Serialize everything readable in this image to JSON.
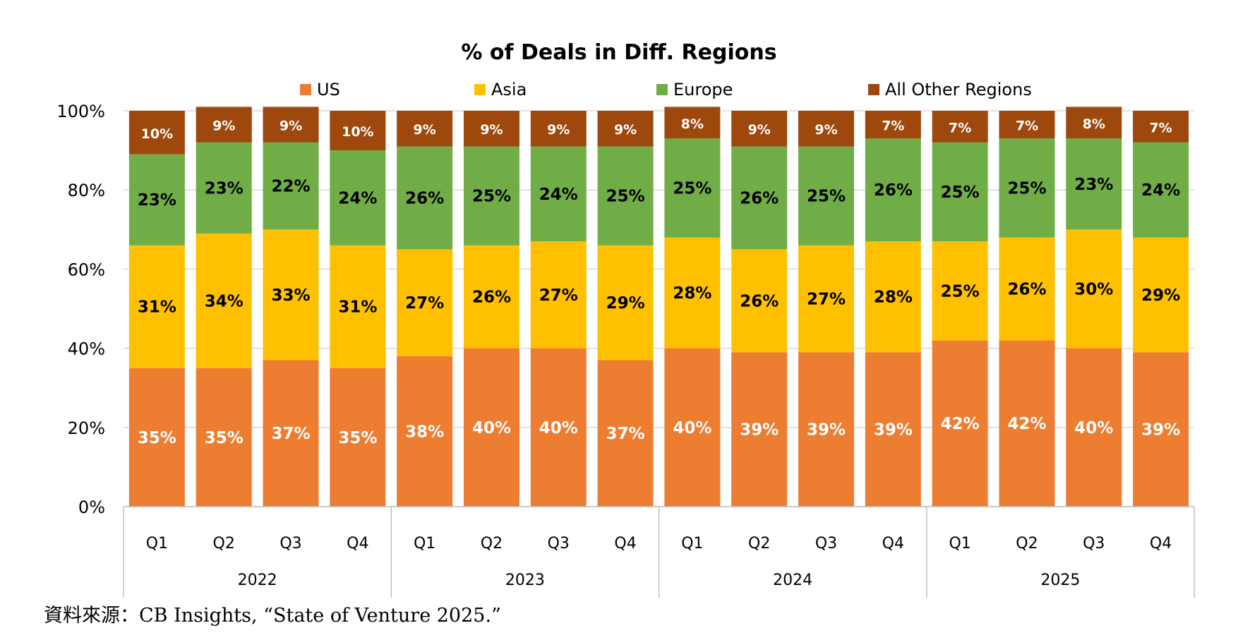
{
  "chart_data": {
    "type": "bar",
    "stacked": true,
    "title": "% of Deals in Diff. Regions",
    "legend_position": "top",
    "ylim": [
      0,
      100
    ],
    "yticks": [
      "0%",
      "20%",
      "40%",
      "60%",
      "80%",
      "100%"
    ],
    "grid": true,
    "categories": [
      "Q1",
      "Q2",
      "Q3",
      "Q4",
      "Q1",
      "Q2",
      "Q3",
      "Q4",
      "Q1",
      "Q2",
      "Q3",
      "Q4",
      "Q1",
      "Q2",
      "Q3",
      "Q4"
    ],
    "groups": [
      {
        "label": "2022",
        "count": 4
      },
      {
        "label": "2023",
        "count": 4
      },
      {
        "label": "2024",
        "count": 4
      },
      {
        "label": "2025",
        "count": 4
      }
    ],
    "series": [
      {
        "name": "US",
        "color": "#ED7D31",
        "label_color": "white",
        "values": [
          35,
          35,
          37,
          35,
          38,
          40,
          40,
          37,
          40,
          39,
          39,
          39,
          42,
          42,
          40,
          39
        ],
        "labels": [
          "35%",
          "35%",
          "37%",
          "35%",
          "38%",
          "40%",
          "40%",
          "37%",
          "40%",
          "39%",
          "39%",
          "39%",
          "42%",
          "42%",
          "40%",
          "39%"
        ]
      },
      {
        "name": "Asia",
        "color": "#FFC000",
        "label_color": "black",
        "values": [
          31,
          34,
          33,
          31,
          27,
          26,
          27,
          29,
          28,
          26,
          27,
          28,
          25,
          26,
          30,
          29
        ],
        "labels": [
          "31%",
          "34%",
          "33%",
          "31%",
          "27%",
          "26%",
          "27%",
          "29%",
          "28%",
          "26%",
          "27%",
          "28%",
          "25%",
          "26%",
          "30%",
          "29%"
        ]
      },
      {
        "name": "Europe",
        "color": "#70AD47",
        "label_color": "black",
        "values": [
          23,
          23,
          22,
          24,
          26,
          25,
          24,
          25,
          25,
          26,
          25,
          26,
          25,
          25,
          23,
          24
        ],
        "labels": [
          "23%",
          "23%",
          "22%",
          "24%",
          "26%",
          "25%",
          "24%",
          "25%",
          "25%",
          "26%",
          "25%",
          "26%",
          "25%",
          "25%",
          "23%",
          "24%"
        ]
      },
      {
        "name": "All Other Regions",
        "color": "#9E480E",
        "label_color": "white",
        "values": [
          10,
          9,
          9,
          10,
          9,
          9,
          9,
          9,
          8,
          9,
          9,
          7,
          7,
          7,
          8,
          7
        ],
        "labels": [
          "10%",
          "9%",
          "9%",
          "10%",
          "9%",
          "9%",
          "9%",
          "9%",
          "8%",
          "9%",
          "9%",
          "7%",
          "7%",
          "7%",
          "8%",
          "7%"
        ]
      }
    ]
  },
  "source_note": "資料來源：CB Insights, “State of Venture 2025.”"
}
